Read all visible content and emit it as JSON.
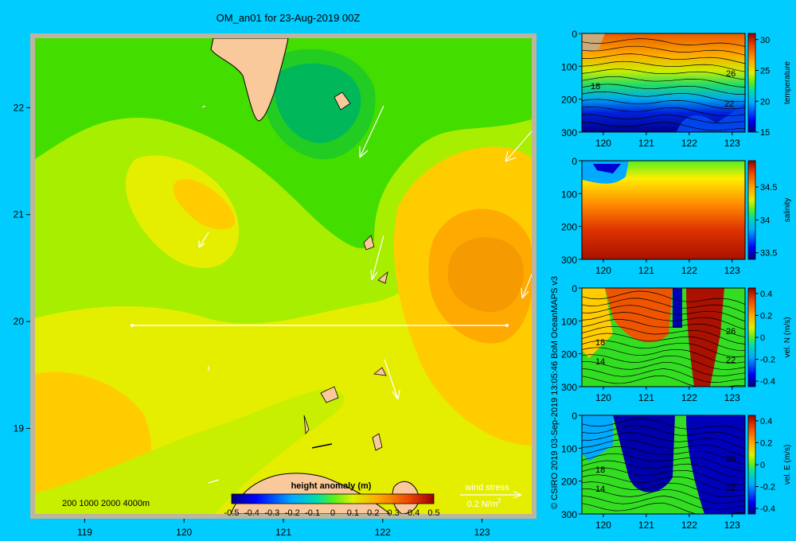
{
  "title": "OM_an01 for 23-Aug-2019 00Z",
  "credit": "© CSIRO 2019   03-Sep-2019 13:05:46 BoM OceanMAPS v3",
  "map": {
    "x_ticks": [
      "119",
      "120",
      "121",
      "122",
      "123"
    ],
    "y_ticks": [
      "22",
      "21",
      "20",
      "19"
    ],
    "depth_legend": "200  1000  2000  4000m",
    "colorbar_title": "height anomaly (m)",
    "colorbar_ticks": [
      "-0.5",
      "-0.4",
      "-0.3",
      "-0.2",
      "-0.1",
      "0",
      "0.1",
      "0.2",
      "0.3",
      "0.4",
      "0.5"
    ],
    "wind_title": "wind stress",
    "wind_scale": "0.2 N/m",
    "wind_scale_sup": "2"
  },
  "colors": {
    "background": "#00ccff",
    "land": "#f9c89b",
    "frame": "#bdb59c",
    "section_line": "#ffffff"
  },
  "panels": [
    {
      "label": "temperature",
      "y_ticks": [
        "0",
        "100",
        "200",
        "300"
      ],
      "x_ticks": [
        "120",
        "121",
        "122",
        "123"
      ],
      "cb_ticks": [
        "30",
        "25",
        "20",
        "15"
      ],
      "contour_labels": [
        "18",
        "26",
        "22"
      ]
    },
    {
      "label": "salinity",
      "y_ticks": [
        "0",
        "100",
        "200",
        "300"
      ],
      "x_ticks": [
        "120",
        "121",
        "122",
        "123"
      ],
      "cb_ticks": [
        "34.5",
        "34",
        "33.5"
      ],
      "contour_labels": []
    },
    {
      "label": "vel. N (m/s)",
      "y_ticks": [
        "0",
        "100",
        "200",
        "300"
      ],
      "x_ticks": [
        "120",
        "121",
        "122",
        "123"
      ],
      "cb_ticks": [
        "0.4",
        "0.2",
        "0",
        "-0.2",
        "-0.4"
      ],
      "contour_labels": [
        "18",
        "14",
        "26",
        "22"
      ]
    },
    {
      "label": "vel. E (m/s)",
      "y_ticks": [
        "0",
        "100",
        "200",
        "300"
      ],
      "x_ticks": [
        "120",
        "121",
        "122",
        "123"
      ],
      "cb_ticks": [
        "0.4",
        "0.2",
        "0",
        "-0.2",
        "-0.4"
      ],
      "contour_labels": [
        "18",
        "14",
        "26",
        "22"
      ]
    }
  ],
  "chart_data": {
    "type": "heatmap",
    "title": "OM_an01 for 23-Aug-2019 00Z",
    "xlabel": "",
    "ylabel": "",
    "xlim": [
      118.5,
      123.5
    ],
    "ylim": [
      18.2,
      22.65
    ],
    "colorbar": {
      "title": "height anomaly (m)",
      "range": [
        -0.5,
        0.5
      ]
    },
    "section": {
      "lon": [
        119.5,
        123.2
      ],
      "lat": [
        20.0,
        20.0
      ]
    },
    "wind_stress_scale": "0.2 N/m2",
    "panels": [
      {
        "variable": "temperature",
        "ylim": [
          300,
          0
        ],
        "xlim": [
          119.5,
          123.3
        ],
        "crange": [
          15,
          31
        ]
      },
      {
        "variable": "salinity",
        "ylim": [
          300,
          0
        ],
        "xlim": [
          119.5,
          123.3
        ],
        "crange": [
          33.4,
          34.9
        ]
      },
      {
        "variable": "vel. N (m/s)",
        "ylim": [
          300,
          0
        ],
        "xlim": [
          119.5,
          123.3
        ],
        "crange": [
          -0.45,
          0.45
        ]
      },
      {
        "variable": "vel. E (m/s)",
        "ylim": [
          300,
          0
        ],
        "xlim": [
          119.5,
          123.3
        ],
        "crange": [
          -0.45,
          0.45
        ]
      }
    ]
  }
}
